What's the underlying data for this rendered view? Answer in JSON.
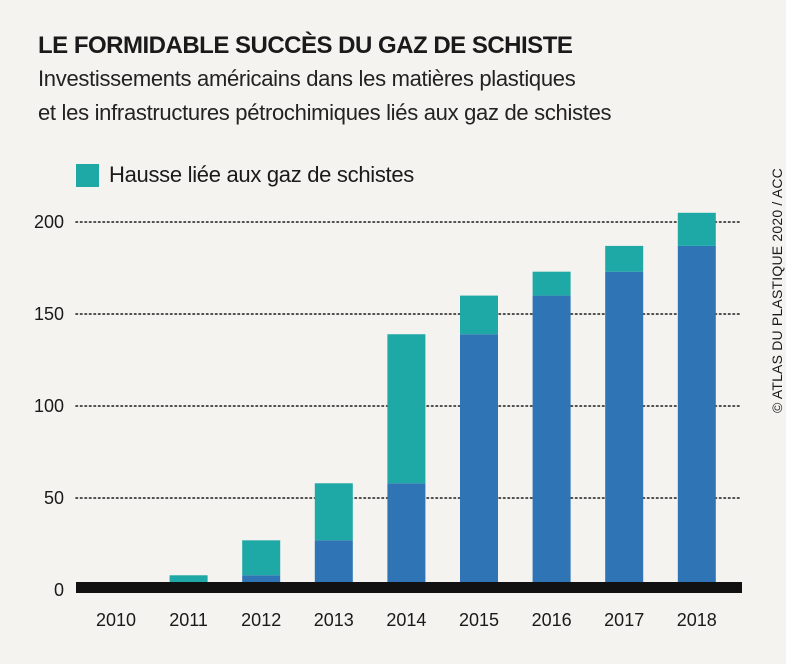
{
  "header": {
    "title": "LE FORMIDABLE SUCCÈS DU GAZ DE SCHISTE",
    "subtitle_line1": "Investissements américains dans les matières plastiques",
    "subtitle_line2": "et les infrastructures pétrochimiques liés aux gaz de schistes"
  },
  "legend": {
    "label": "Hausse liée aux gaz de schistes"
  },
  "credit": "© ATLAS DU PLASTIQUE 2020 / ACC",
  "colors": {
    "base": "#2f74b5",
    "increase": "#1fa9a6",
    "gridline": "#1a1a1a",
    "axis": "#111111",
    "background": "#f4f3ef"
  },
  "chart_data": {
    "type": "bar",
    "stacked": true,
    "categories": [
      "2010",
      "2011",
      "2012",
      "2013",
      "2014",
      "2015",
      "2016",
      "2017",
      "2018"
    ],
    "series": [
      {
        "key": "base",
        "values": [
          4,
          4,
          8,
          27,
          58,
          139,
          160,
          173,
          187
        ]
      },
      {
        "key": "increase",
        "name": "Hausse liée aux gaz de schistes",
        "values": [
          0,
          4,
          19,
          31,
          81,
          21,
          13,
          14,
          18
        ]
      }
    ],
    "totals": [
      4,
      8,
      27,
      58,
      139,
      160,
      173,
      187,
      205
    ],
    "yticks": [
      0,
      50,
      100,
      150,
      200
    ],
    "ylim": [
      0,
      205
    ],
    "grid": "dotted horizontal"
  }
}
